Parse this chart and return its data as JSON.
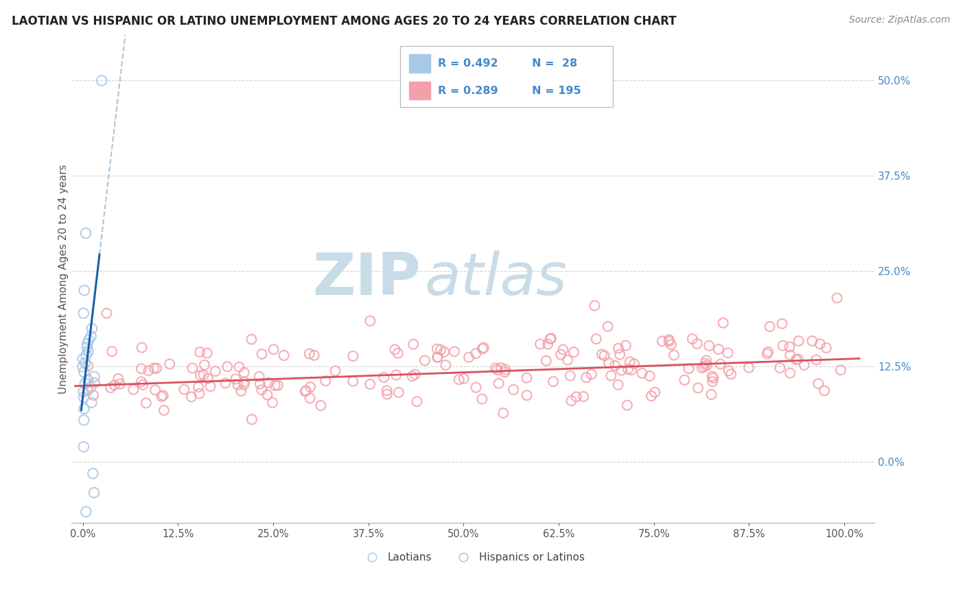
{
  "title": "LAOTIAN VS HISPANIC OR LATINO UNEMPLOYMENT AMONG AGES 20 TO 24 YEARS CORRELATION CHART",
  "source": "Source: ZipAtlas.com",
  "ylabel": "Unemployment Among Ages 20 to 24 years",
  "xlim": [
    -0.015,
    1.04
  ],
  "ylim": [
    -0.08,
    0.56
  ],
  "yticks": [
    0.0,
    0.125,
    0.25,
    0.375,
    0.5
  ],
  "ylabels": [
    "0.0%",
    "12.5%",
    "25.0%",
    "37.5%",
    "50.0%"
  ],
  "xticks": [
    0.0,
    0.125,
    0.25,
    0.375,
    0.5,
    0.625,
    0.75,
    0.875,
    1.0
  ],
  "xlabels": [
    "0.0%",
    "12.5%",
    "25.0%",
    "37.5%",
    "50.0%",
    "62.5%",
    "75.0%",
    "87.5%",
    "100.0%"
  ],
  "legend_r1": "R = 0.492",
  "legend_n1": "N =  28",
  "legend_r2": "R = 0.289",
  "legend_n2": "N = 195",
  "blue_scatter_color": "#a8c8e8",
  "pink_scatter_color": "#f4a0a8",
  "blue_line_color": "#1a5fa8",
  "pink_line_color": "#d85060",
  "blue_dashed_color": "#90b8d8",
  "watermark_zip": "ZIP",
  "watermark_atlas": "atlas",
  "watermark_color": "#c8dce8",
  "background_color": "#ffffff",
  "grid_color": "#d0d0d0",
  "title_color": "#222222",
  "axis_label_color": "#555555",
  "right_tick_color": "#4488cc",
  "source_color": "#888888"
}
